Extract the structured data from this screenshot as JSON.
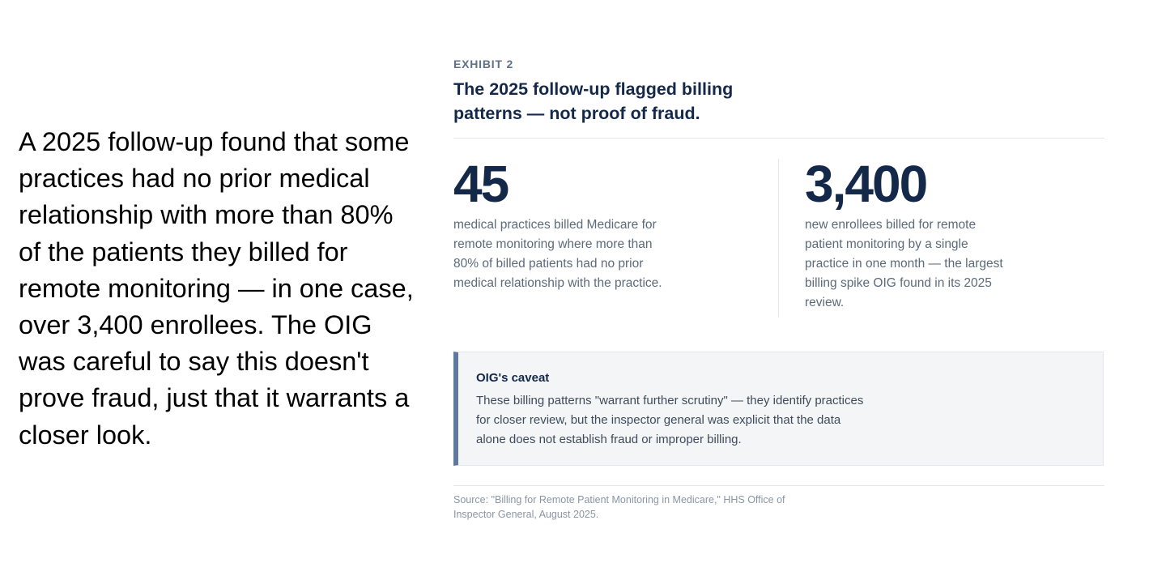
{
  "lead_text": "A 2025 follow-up found that some practices had no prior medical relationship with more than 80% of the patients they billed for remote monitoring — in one case, over 3,400 enrollees. The OIG was careful to say this doesn't prove fraud, just that it warrants a closer look.",
  "exhibit": {
    "eyebrow": "EXHIBIT 2",
    "headline": "The 2025 follow-up flagged billing patterns — not proof of fraud.",
    "stats": [
      {
        "value": "45",
        "description": "medical practices billed Medicare for remote monitoring where more than 80% of billed patients had no prior medical relationship with the practice."
      },
      {
        "value": "3,400",
        "description": "new enrollees billed for remote patient monitoring by a single practice in one month — the largest billing spike OIG found in its 2025 review."
      }
    ],
    "caveat": {
      "title": "OIG's caveat",
      "body": "These billing patterns \"warrant further scrutiny\" — they identify practices for closer review, but the inspector general was explicit that the data alone does not establish fraud or improper billing."
    },
    "source": "Source: \"Billing for Remote Patient Monitoring in Medicare,\" HHS Office of Inspector General, August 2025."
  },
  "colors": {
    "headline": "#14294a",
    "eyebrow": "#5f7089",
    "body_text": "#5c6a7a",
    "caveat_background": "#f3f5f7",
    "caveat_accent": "#5d7a9e",
    "source_text": "#8a96a4"
  }
}
